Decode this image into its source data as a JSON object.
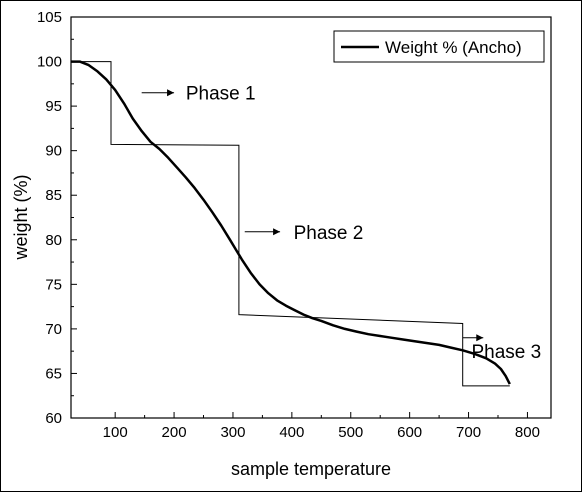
{
  "chart_data": {
    "type": "line",
    "title": "",
    "xlabel": "sample temperature",
    "ylabel": "weight (%)",
    "xlim": [
      25,
      840
    ],
    "ylim": [
      60,
      105
    ],
    "x_ticks": [
      100,
      200,
      300,
      400,
      500,
      600,
      700,
      800
    ],
    "y_ticks": [
      60,
      65,
      70,
      75,
      80,
      85,
      90,
      95,
      100,
      105
    ],
    "x_tick_labels": [
      "100",
      "200",
      "300",
      "400",
      "500",
      "600",
      "700",
      "800"
    ],
    "y_tick_labels": [
      "60",
      "65",
      "70",
      "75",
      "80",
      "85",
      "90",
      "95",
      "100",
      "105"
    ],
    "grid": false,
    "legend_position": "top-right",
    "series": [
      {
        "name": "Weight % (Ancho)",
        "color": "#000000",
        "x": [
          25,
          40,
          55,
          70,
          85,
          100,
          115,
          130,
          145,
          160,
          175,
          190,
          205,
          220,
          235,
          250,
          265,
          280,
          295,
          305,
          315,
          330,
          345,
          360,
          375,
          390,
          405,
          420,
          435,
          450,
          470,
          490,
          510,
          530,
          550,
          570,
          590,
          610,
          630,
          650,
          670,
          690,
          710,
          730,
          745,
          755,
          763,
          770
        ],
        "y": [
          100.0,
          100.0,
          99.6,
          98.9,
          98.0,
          96.8,
          95.3,
          93.6,
          92.2,
          91.0,
          90.2,
          89.2,
          88.1,
          87.0,
          85.8,
          84.5,
          83.1,
          81.6,
          80.0,
          78.9,
          77.8,
          76.3,
          75.0,
          74.0,
          73.2,
          72.6,
          72.1,
          71.6,
          71.2,
          70.9,
          70.4,
          70.0,
          69.7,
          69.4,
          69.2,
          69.0,
          68.8,
          68.6,
          68.4,
          68.2,
          67.9,
          67.6,
          67.2,
          66.7,
          66.1,
          65.5,
          64.7,
          63.8
        ]
      }
    ],
    "step_outline": {
      "x": [
        25,
        93,
        93,
        310,
        310,
        690,
        690,
        770
      ],
      "y": [
        100.0,
        100.0,
        90.7,
        90.6,
        71.6,
        70.6,
        63.6,
        63.6
      ]
    },
    "annotations": [
      {
        "text": "Phase 1",
        "arrow_from": [
          145,
          96.5
        ],
        "arrow_to": [
          200,
          96.5
        ],
        "text_at": [
          220,
          96.5
        ]
      },
      {
        "text": "Phase 2",
        "arrow_from": [
          320,
          80.9
        ],
        "arrow_to": [
          380,
          80.9
        ],
        "text_at": [
          403,
          80.9
        ]
      },
      {
        "text": "Phase 3",
        "arrow_from": [
          690,
          69.0
        ],
        "arrow_to": [
          725,
          69.0
        ],
        "text_at": [
          705,
          67.5
        ]
      }
    ]
  }
}
